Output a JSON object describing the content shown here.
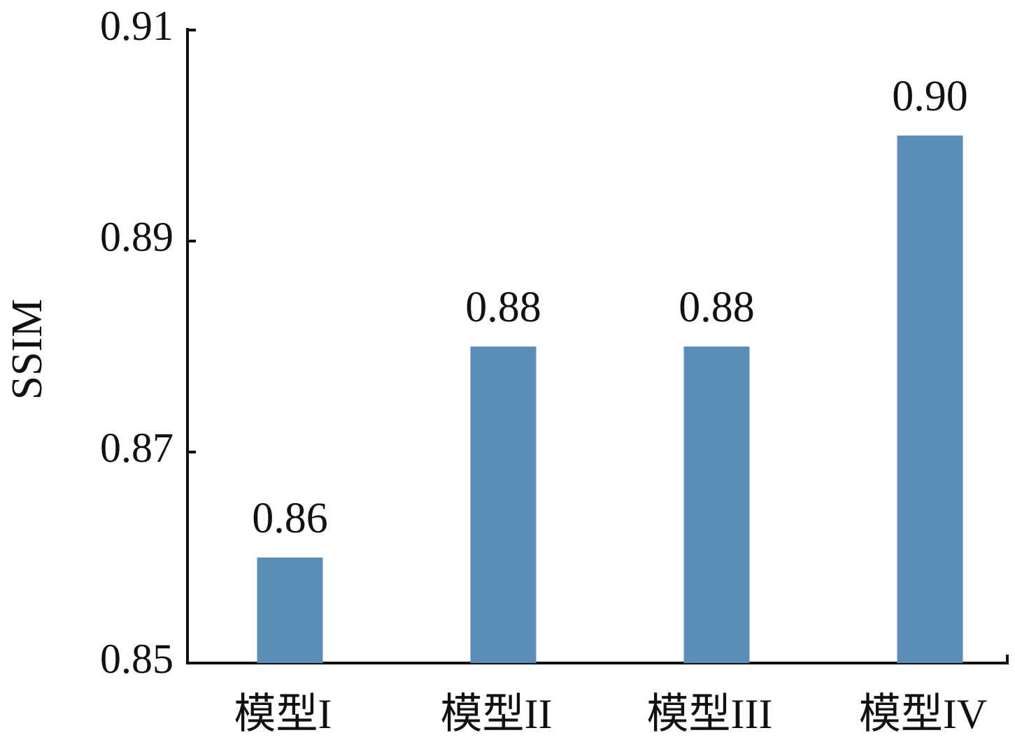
{
  "chart_data": {
    "type": "bar",
    "y_label": "SSIM",
    "categories": [
      "模型I",
      "模型II",
      "模型III",
      "模型IV"
    ],
    "values": [
      0.86,
      0.88,
      0.88,
      0.9
    ],
    "value_labels": [
      "0.86",
      "0.88",
      "0.88",
      "0.90"
    ],
    "color": "#5b8db8",
    "ylim": [
      0.85,
      0.91
    ],
    "yticks": [
      0.85,
      0.87,
      0.89,
      0.91
    ],
    "grid": false
  }
}
